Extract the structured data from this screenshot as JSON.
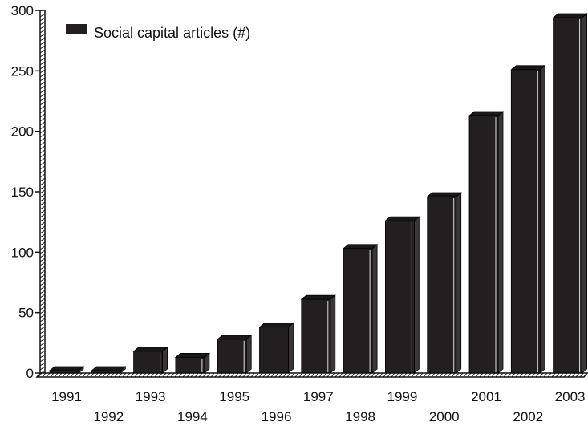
{
  "chart_data": {
    "type": "bar",
    "title": "",
    "xlabel": "",
    "ylabel": "",
    "categories": [
      "1991",
      "1992",
      "1993",
      "1994",
      "1995",
      "1996",
      "1997",
      "1998",
      "1999",
      "2000",
      "2001",
      "2002",
      "2003"
    ],
    "series": [
      {
        "name": "Social capital articles (#)",
        "values": [
          2,
          2,
          18,
          13,
          28,
          38,
          61,
          103,
          126,
          146,
          213,
          251,
          294
        ]
      }
    ],
    "ylim": [
      0,
      300
    ],
    "yticks": [
      "0",
      "50",
      "100",
      "150",
      "200",
      "250",
      "300"
    ],
    "grid": false,
    "legend": "top-left",
    "style": "3d-bars",
    "colors": {
      "bar": "#231f20",
      "bar_top": "#1a1718",
      "bar_side": "#3a3637",
      "axis": "#111111"
    }
  }
}
